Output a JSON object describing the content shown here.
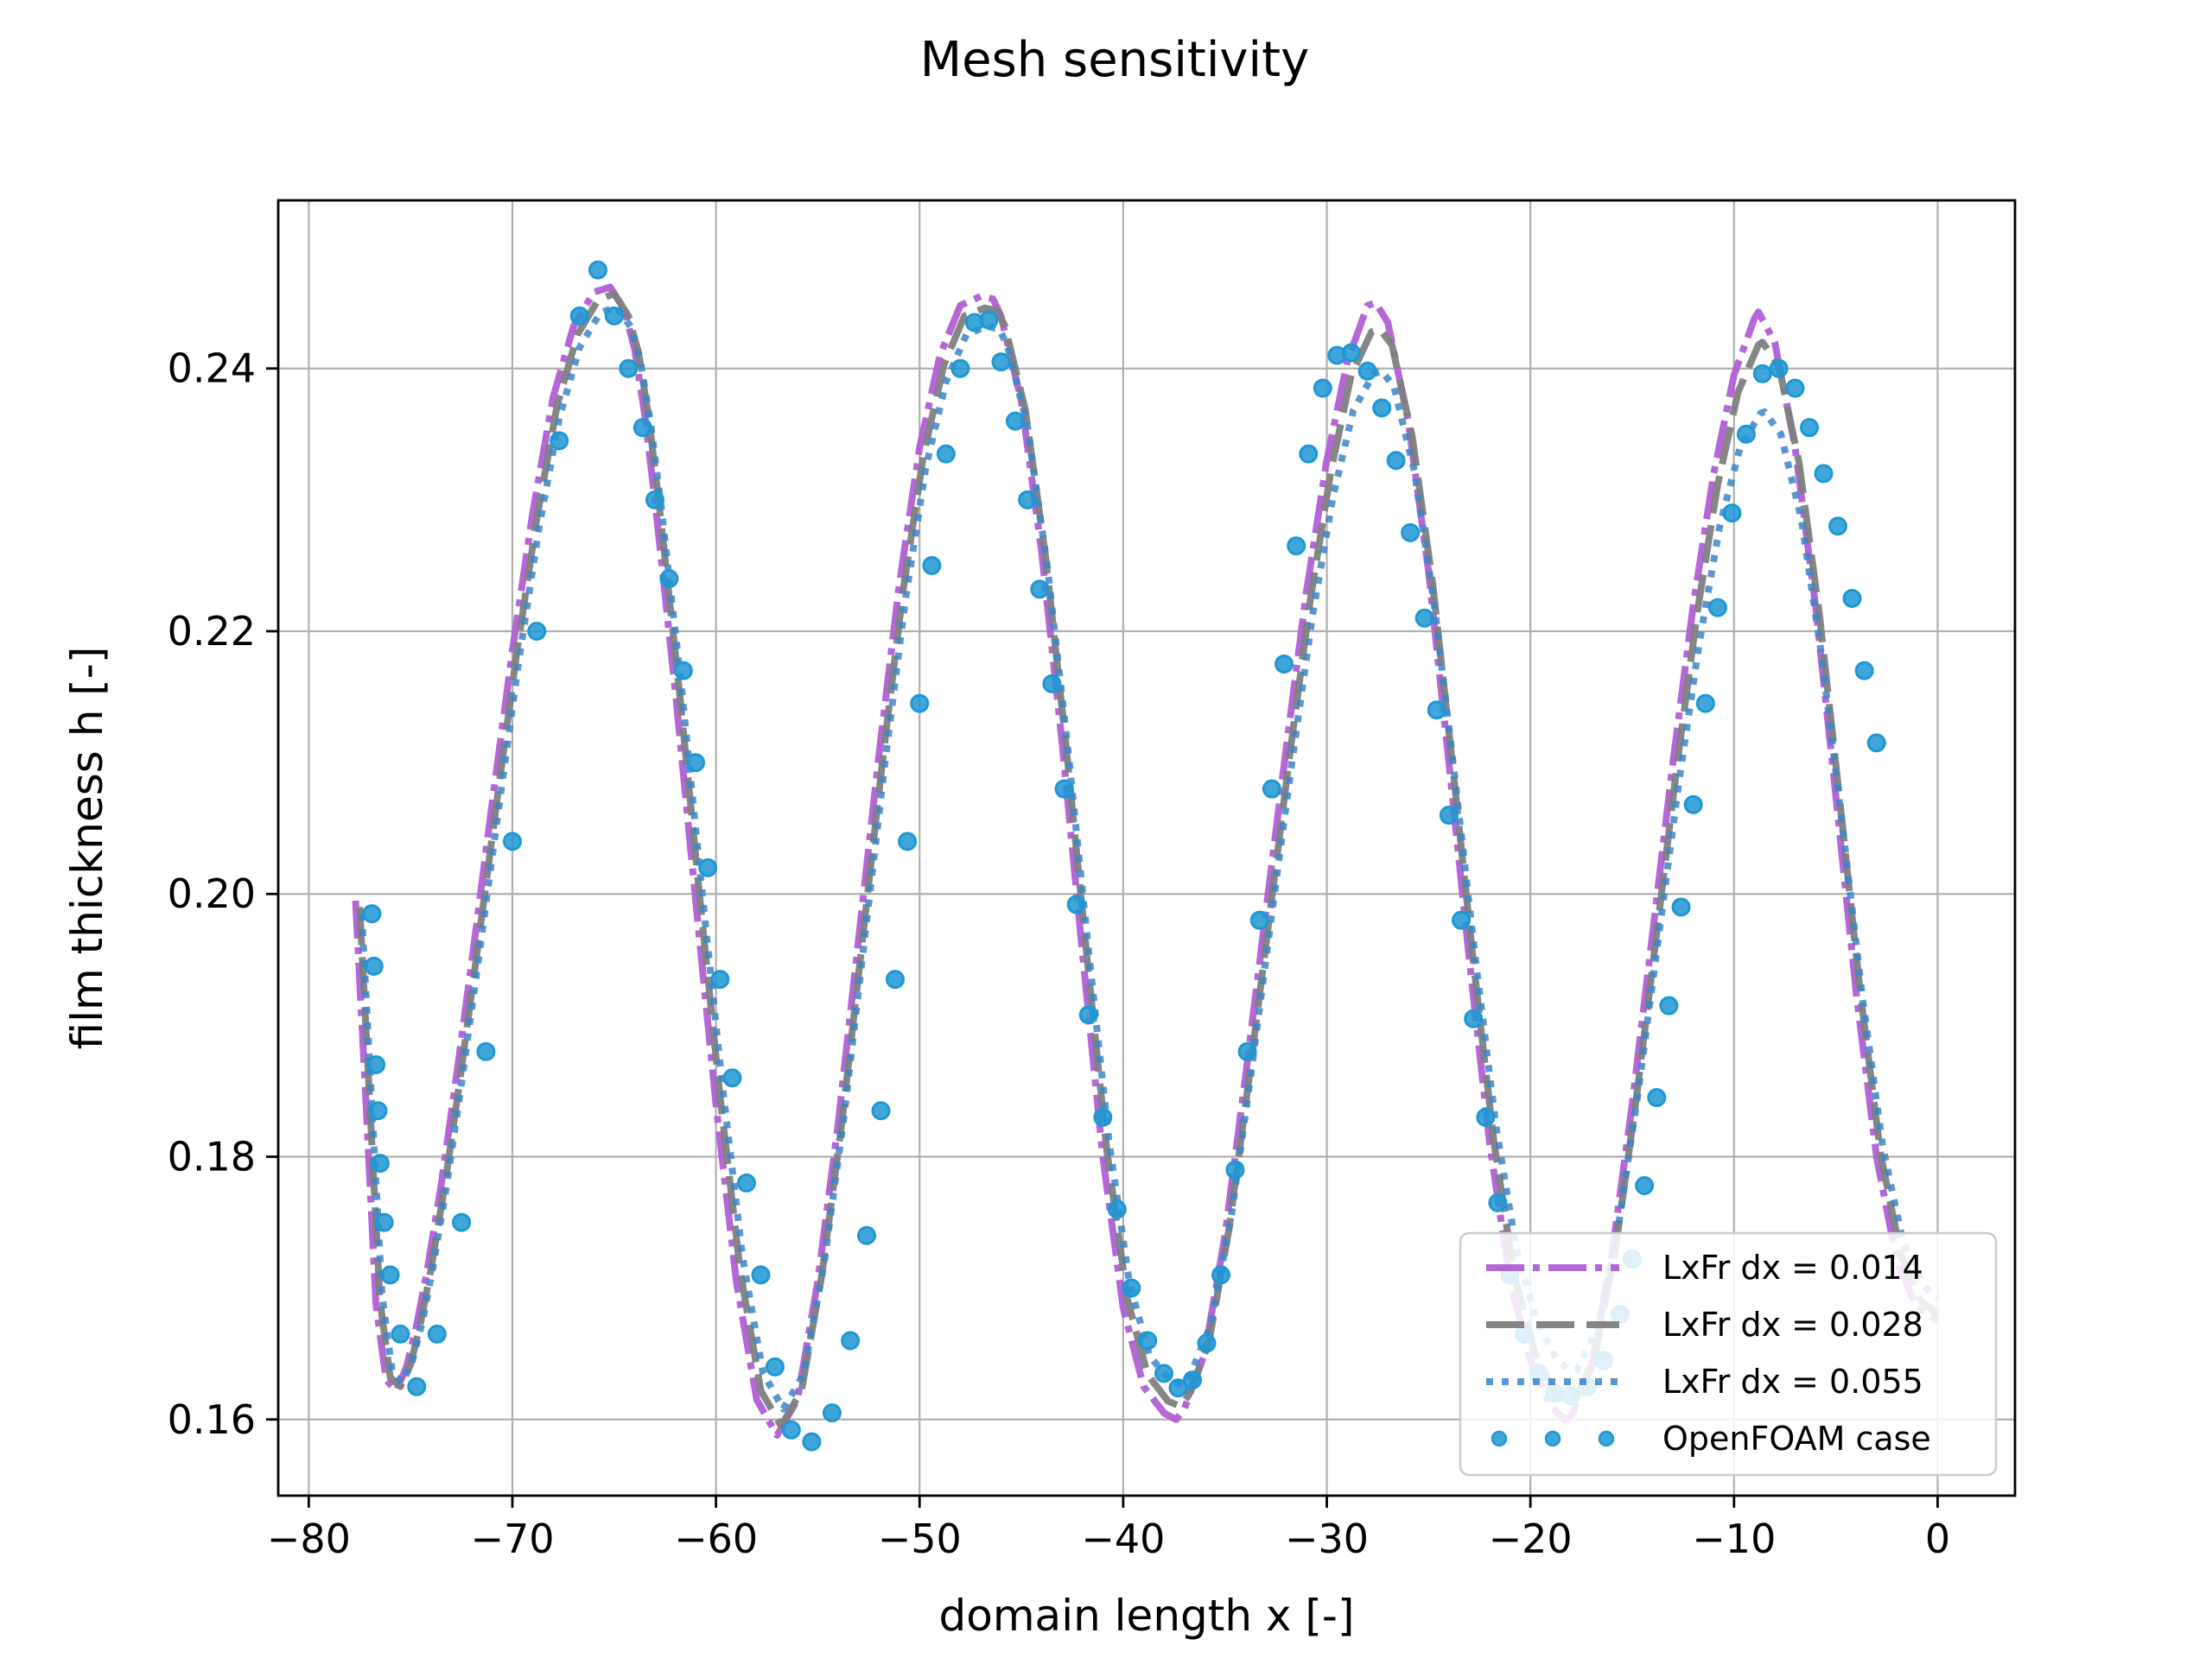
{
  "chart_data": {
    "type": "line",
    "title": "Mesh sensitivity",
    "xlabel": "domain length x [-]",
    "ylabel": "film thickness h [-]",
    "xlim": [
      -81.5,
      3.8
    ],
    "ylim": [
      0.1542,
      0.2528
    ],
    "xticks": [
      -80,
      -70,
      -60,
      -50,
      -40,
      -30,
      -20,
      -10,
      0
    ],
    "xtick_labels": [
      "−80",
      "−70",
      "−60",
      "−50",
      "−40",
      "−30",
      "−20",
      "−10",
      "0"
    ],
    "yticks": [
      0.16,
      0.18,
      0.2,
      0.22,
      0.24
    ],
    "ytick_labels": [
      "0.16",
      "0.18",
      "0.20",
      "0.22",
      "0.24"
    ],
    "grid": true,
    "legend_position": "lower-right",
    "series": [
      {
        "name": "LxFr dx = 0.014",
        "style": "dashdot",
        "color": "#b15fd6",
        "x": [
          -77.7,
          -77.2,
          -76.7,
          -76.2,
          -75.7,
          -75.2,
          -74.7,
          -74.2,
          -73.5,
          -72.8,
          -72.0,
          -71.0,
          -70.0,
          -69.0,
          -68.0,
          -67.0,
          -66.0,
          -65.2,
          -64.5,
          -64.0,
          -63.5,
          -63.0,
          -62.0,
          -61.0,
          -60.0,
          -59.0,
          -58.0,
          -57.0,
          -56.0,
          -55.0,
          -54.0,
          -53.0,
          -52.0,
          -51.0,
          -50.0,
          -49.0,
          -48.0,
          -47.0,
          -46.4,
          -46.0,
          -45.0,
          -44.0,
          -43.0,
          -42.0,
          -41.0,
          -40.0,
          -39.0,
          -38.0,
          -37.4,
          -37.0,
          -36.0,
          -35.0,
          -34.0,
          -33.0,
          -32.0,
          -31.0,
          -30.0,
          -29.0,
          -28.0,
          -27.6,
          -27.0,
          -26.0,
          -25.0,
          -24.0,
          -23.0,
          -22.0,
          -21.0,
          -20.0,
          -19.0,
          -18.3,
          -18.0,
          -17.0,
          -16.0,
          -15.0,
          -14.0,
          -13.0,
          -12.0,
          -11.0,
          -10.0,
          -9.0,
          -8.8,
          -8.0,
          -7.0,
          -6.0,
          -5.0,
          -4.0,
          -3.0,
          -2.0,
          -1.0,
          0.0
        ],
        "values": [
          0.1995,
          0.1845,
          0.1688,
          0.163,
          0.1622,
          0.164,
          0.1672,
          0.1712,
          0.1778,
          0.1855,
          0.1948,
          0.2068,
          0.2185,
          0.229,
          0.2378,
          0.2432,
          0.2458,
          0.2462,
          0.2445,
          0.2415,
          0.2365,
          0.23,
          0.2155,
          0.1995,
          0.184,
          0.1705,
          0.1615,
          0.1588,
          0.1615,
          0.1705,
          0.1825,
          0.1965,
          0.2105,
          0.2235,
          0.234,
          0.241,
          0.2448,
          0.2455,
          0.2453,
          0.244,
          0.2375,
          0.226,
          0.2115,
          0.1955,
          0.18,
          0.1685,
          0.1625,
          0.1605,
          0.16,
          0.1608,
          0.165,
          0.174,
          0.186,
          0.1985,
          0.211,
          0.223,
          0.233,
          0.2405,
          0.2448,
          0.245,
          0.2435,
          0.236,
          0.2245,
          0.21,
          0.195,
          0.181,
          0.1705,
          0.1645,
          0.161,
          0.16,
          0.1602,
          0.164,
          0.1725,
          0.184,
          0.197,
          0.21,
          0.222,
          0.232,
          0.2395,
          0.2438,
          0.2443,
          0.242,
          0.234,
          0.222,
          0.2075,
          0.1925,
          0.18,
          0.172,
          0.1685,
          0.1675
        ]
      },
      {
        "name": "LxFr dx = 0.028",
        "style": "dashed",
        "color": "#7f7f7f",
        "x": [
          -77.5,
          -77.0,
          -76.5,
          -76.0,
          -75.5,
          -75.0,
          -74.5,
          -74.0,
          -73.3,
          -72.6,
          -71.8,
          -70.8,
          -69.8,
          -68.8,
          -67.8,
          -66.8,
          -65.8,
          -65.0,
          -64.3,
          -63.8,
          -63.3,
          -62.8,
          -61.8,
          -60.8,
          -59.8,
          -58.8,
          -57.8,
          -56.8,
          -55.8,
          -54.8,
          -53.8,
          -52.8,
          -51.8,
          -50.8,
          -49.8,
          -48.8,
          -47.8,
          -46.8,
          -46.2,
          -45.8,
          -44.8,
          -43.8,
          -42.8,
          -41.8,
          -40.8,
          -39.8,
          -38.8,
          -37.8,
          -37.2,
          -36.8,
          -35.8,
          -34.8,
          -33.8,
          -32.8,
          -31.8,
          -30.8,
          -29.8,
          -28.8,
          -27.8,
          -27.4,
          -26.8,
          -25.8,
          -24.8,
          -23.8,
          -22.8,
          -21.8,
          -20.8,
          -19.8,
          -18.8,
          -18.1,
          -17.8,
          -16.8,
          -15.8,
          -14.8,
          -13.8,
          -12.8,
          -11.8,
          -10.8,
          -9.8,
          -8.8,
          -8.6,
          -7.8,
          -6.8,
          -5.8,
          -4.8,
          -3.8,
          -2.8,
          -1.8,
          -0.8,
          0.0
        ],
        "values": [
          0.199,
          0.184,
          0.169,
          0.1632,
          0.1625,
          0.1642,
          0.1674,
          0.1714,
          0.178,
          0.1856,
          0.1948,
          0.2066,
          0.2182,
          0.2286,
          0.2372,
          0.2426,
          0.2452,
          0.2457,
          0.244,
          0.2412,
          0.2362,
          0.2298,
          0.2155,
          0.1998,
          0.1846,
          0.1712,
          0.1622,
          0.1595,
          0.1622,
          0.171,
          0.1828,
          0.1966,
          0.2104,
          0.2232,
          0.2335,
          0.2403,
          0.244,
          0.2446,
          0.2444,
          0.2432,
          0.2368,
          0.2255,
          0.2112,
          0.1955,
          0.1804,
          0.1692,
          0.1634,
          0.1614,
          0.161,
          0.1618,
          0.1658,
          0.1745,
          0.1862,
          0.1985,
          0.2108,
          0.2225,
          0.2322,
          0.2395,
          0.2428,
          0.243,
          0.2418,
          0.2348,
          0.2236,
          0.2095,
          0.1948,
          0.1812,
          0.171,
          0.1652,
          0.162,
          0.1612,
          0.1614,
          0.165,
          0.1732,
          0.1844,
          0.197,
          0.2098,
          0.2215,
          0.2312,
          0.2382,
          0.2418,
          0.242,
          0.2402,
          0.2328,
          0.2212,
          0.207,
          0.1925,
          0.1802,
          0.1725,
          0.169,
          0.168
        ]
      },
      {
        "name": "LxFr dx = 0.055",
        "style": "dotted",
        "color": "#3d85c6",
        "x": [
          -77.4,
          -76.9,
          -76.4,
          -75.9,
          -75.4,
          -74.9,
          -74.4,
          -73.9,
          -73.2,
          -72.5,
          -71.7,
          -70.7,
          -69.7,
          -68.7,
          -67.7,
          -66.7,
          -65.7,
          -64.9,
          -64.2,
          -63.7,
          -63.2,
          -62.7,
          -61.7,
          -60.7,
          -59.7,
          -58.7,
          -57.7,
          -56.7,
          -55.7,
          -54.7,
          -53.7,
          -52.7,
          -51.7,
          -50.7,
          -49.7,
          -48.7,
          -47.7,
          -46.7,
          -46.1,
          -45.7,
          -44.7,
          -43.7,
          -42.7,
          -41.7,
          -40.7,
          -39.7,
          -38.7,
          -37.7,
          -37.1,
          -36.7,
          -35.7,
          -34.7,
          -33.7,
          -32.7,
          -31.7,
          -30.7,
          -29.7,
          -28.7,
          -27.7,
          -27.3,
          -26.7,
          -25.7,
          -24.7,
          -23.7,
          -22.7,
          -21.7,
          -20.7,
          -19.7,
          -18.7,
          -18.0,
          -17.7,
          -16.7,
          -15.7,
          -14.7,
          -13.7,
          -12.7,
          -11.7,
          -10.7,
          -9.7,
          -8.7,
          -8.5,
          -7.7,
          -6.7,
          -5.7,
          -4.7,
          -3.7,
          -2.7,
          -1.7,
          -0.7,
          0.0
        ],
        "values": [
          0.1985,
          0.1838,
          0.1694,
          0.1636,
          0.1628,
          0.1645,
          0.1676,
          0.1716,
          0.1781,
          0.1856,
          0.1946,
          0.2062,
          0.2176,
          0.2278,
          0.2362,
          0.2416,
          0.2442,
          0.2447,
          0.2432,
          0.2405,
          0.2357,
          0.2296,
          0.2158,
          0.2004,
          0.1856,
          0.1724,
          0.1636,
          0.1608,
          0.1634,
          0.1718,
          0.1832,
          0.1966,
          0.21,
          0.2224,
          0.2324,
          0.239,
          0.2426,
          0.2432,
          0.243,
          0.2418,
          0.2356,
          0.2246,
          0.2108,
          0.1957,
          0.1812,
          0.1704,
          0.1648,
          0.163,
          0.1626,
          0.1634,
          0.1672,
          0.1754,
          0.1866,
          0.1985,
          0.2102,
          0.2212,
          0.2302,
          0.2368,
          0.2396,
          0.2398,
          0.2386,
          0.2322,
          0.2218,
          0.2087,
          0.195,
          0.1824,
          0.173,
          0.1676,
          0.1645,
          0.1637,
          0.1638,
          0.167,
          0.1745,
          0.185,
          0.1968,
          0.2086,
          0.2192,
          0.228,
          0.234,
          0.2366,
          0.2367,
          0.235,
          0.2286,
          0.2182,
          0.2055,
          0.1922,
          0.1808,
          0.1735,
          0.1702,
          0.1692
        ]
      },
      {
        "name": "OpenFOAM case",
        "style": "markers",
        "color": "#1f97d4",
        "x": [
          -76.9,
          -76.8,
          -76.7,
          -76.6,
          -76.5,
          -76.3,
          -76.0,
          -75.5,
          -74.7,
          -73.7,
          -72.5,
          -71.3,
          -70.0,
          -68.8,
          -67.7,
          -66.7,
          -65.8,
          -65.0,
          -64.3,
          -63.6,
          -63.0,
          -62.3,
          -61.6,
          -61.0,
          -60.4,
          -59.8,
          -59.2,
          -58.5,
          -57.8,
          -57.1,
          -56.3,
          -55.3,
          -54.3,
          -53.4,
          -52.6,
          -51.9,
          -51.2,
          -50.6,
          -50.0,
          -49.4,
          -48.7,
          -48.0,
          -47.3,
          -46.6,
          -46.0,
          -45.3,
          -44.7,
          -44.1,
          -43.5,
          -42.9,
          -42.3,
          -41.7,
          -41.0,
          -40.3,
          -39.6,
          -38.8,
          -38.0,
          -37.3,
          -36.6,
          -35.9,
          -35.2,
          -34.5,
          -33.9,
          -33.3,
          -32.7,
          -32.1,
          -31.5,
          -30.9,
          -30.2,
          -29.5,
          -28.8,
          -28.0,
          -27.3,
          -26.6,
          -25.9,
          -25.2,
          -24.6,
          -24.0,
          -23.4,
          -22.8,
          -22.2,
          -21.6,
          -21.0,
          -20.3,
          -19.6,
          -18.8,
          -18.0,
          -17.2,
          -16.4,
          -15.6,
          -15.0,
          -14.4,
          -13.8,
          -13.2,
          -12.6,
          -12.0,
          -11.4,
          -10.8,
          -10.1,
          -9.4,
          -8.6,
          -7.8,
          -7.0,
          -6.3,
          -5.6,
          -4.9,
          -4.2,
          -3.6,
          -3.0
        ],
        "values": [
          0.1985,
          0.1945,
          0.187,
          0.1835,
          0.1795,
          0.175,
          0.171,
          0.1665,
          0.1625,
          0.1665,
          0.175,
          0.188,
          0.204,
          0.22,
          0.2345,
          0.244,
          0.2475,
          0.244,
          0.24,
          0.2355,
          0.23,
          0.224,
          0.217,
          0.21,
          0.202,
          0.1935,
          0.186,
          0.178,
          0.171,
          0.164,
          0.1592,
          0.1583,
          0.1605,
          0.166,
          0.174,
          0.1835,
          0.1935,
          0.204,
          0.2145,
          0.225,
          0.2335,
          0.24,
          0.2435,
          0.2437,
          0.2405,
          0.236,
          0.23,
          0.2232,
          0.216,
          0.208,
          0.1992,
          0.1908,
          0.183,
          0.176,
          0.17,
          0.166,
          0.1635,
          0.1624,
          0.163,
          0.1658,
          0.171,
          0.179,
          0.188,
          0.198,
          0.208,
          0.2175,
          0.2265,
          0.2335,
          0.2385,
          0.241,
          0.2412,
          0.2398,
          0.237,
          0.233,
          0.2275,
          0.221,
          0.214,
          0.206,
          0.198,
          0.1905,
          0.183,
          0.1765,
          0.171,
          0.1665,
          0.1635,
          0.162,
          0.1618,
          0.1625,
          0.1645,
          0.168,
          0.1722,
          0.1778,
          0.1845,
          0.1915,
          0.199,
          0.2068,
          0.2145,
          0.2218,
          0.229,
          0.235,
          0.2396,
          0.24,
          0.2385,
          0.2355,
          0.232,
          0.228,
          0.2225,
          0.217,
          0.2115
        ]
      }
    ]
  }
}
